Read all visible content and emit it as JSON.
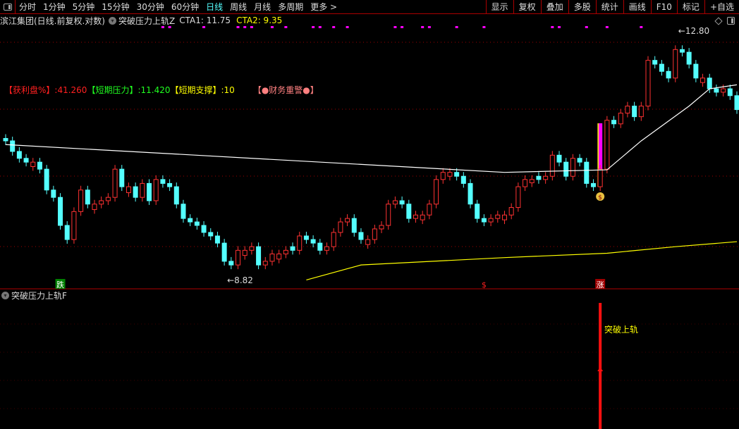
{
  "toolbar": {
    "periods": [
      "分时",
      "1分钟",
      "5分钟",
      "15分钟",
      "30分钟",
      "60分钟",
      "日线",
      "周线",
      "月线",
      "多周期",
      "更多 >"
    ],
    "active": "日线",
    "right_buttons": [
      "显示",
      "复权",
      "叠加",
      "多股",
      "统计",
      "画线",
      "F10",
      "标记",
      "+自选"
    ]
  },
  "info": {
    "stock": "滨江集团(日线.前复权.对数)",
    "indicator": "突破压力上轨Z",
    "cta1": "CTA1: 11.75",
    "cta2": "CTA2: 9.35"
  },
  "legend": {
    "profit_label": "【获利盘%】",
    "profit_value": ":41.260",
    "pressure_label": "【短期压力】",
    "pressure_value": ":11.420",
    "support_label": "【短期支撑】",
    "support_value": ":10",
    "warning": "【●财务重警●】"
  },
  "sub_panel": {
    "title": "突破压力上轨F",
    "signal_text": "突破上轨"
  },
  "colors": {
    "up": "#ff3232",
    "down": "#54ffff",
    "ma_white": "#ffffff",
    "ma_yellow": "#ffff00",
    "signal": "#ff00ff",
    "grid": "#a00000"
  },
  "chart_data": {
    "type": "candlestick",
    "scale": "log",
    "candles_open_close": [
      [
        10.9,
        10.86
      ],
      [
        10.86,
        10.69
      ],
      [
        10.69,
        10.58
      ],
      [
        10.58,
        10.52
      ],
      [
        10.45,
        10.52
      ],
      [
        10.52,
        10.41
      ],
      [
        10.41,
        10.09
      ],
      [
        10.09,
        9.98
      ],
      [
        9.98,
        9.57
      ],
      [
        9.57,
        9.37
      ],
      [
        9.37,
        9.77
      ],
      [
        9.77,
        10.09
      ],
      [
        10.09,
        9.88
      ],
      [
        9.8,
        9.88
      ],
      [
        9.88,
        9.93
      ],
      [
        9.93,
        9.98
      ],
      [
        9.98,
        10.41
      ],
      [
        10.41,
        10.14
      ],
      [
        10.05,
        10.14
      ],
      [
        10.14,
        9.98
      ],
      [
        9.98,
        10.19
      ],
      [
        10.19,
        9.93
      ],
      [
        9.93,
        10.25
      ],
      [
        10.25,
        10.19
      ],
      [
        10.19,
        10.14
      ],
      [
        10.14,
        9.88
      ],
      [
        9.88,
        9.67
      ],
      [
        9.67,
        9.62
      ],
      [
        9.62,
        9.57
      ],
      [
        9.57,
        9.47
      ],
      [
        9.47,
        9.42
      ],
      [
        9.42,
        9.32
      ],
      [
        9.32,
        9.07
      ],
      [
        9.07,
        9.02
      ],
      [
        9.02,
        9.22
      ],
      [
        9.15,
        9.22
      ],
      [
        9.22,
        9.27
      ],
      [
        9.27,
        9.02
      ],
      [
        9.02,
        9.07
      ],
      [
        9.07,
        9.17
      ],
      [
        9.1,
        9.17
      ],
      [
        9.17,
        9.22
      ],
      [
        9.27,
        9.22
      ],
      [
        9.22,
        9.42
      ],
      [
        9.42,
        9.37
      ],
      [
        9.37,
        9.32
      ],
      [
        9.32,
        9.22
      ],
      [
        9.22,
        9.27
      ],
      [
        9.27,
        9.47
      ],
      [
        9.47,
        9.62
      ],
      [
        9.62,
        9.67
      ],
      [
        9.67,
        9.47
      ],
      [
        9.47,
        9.37
      ],
      [
        9.3,
        9.37
      ],
      [
        9.37,
        9.52
      ],
      [
        9.52,
        9.57
      ],
      [
        9.57,
        9.88
      ],
      [
        9.88,
        9.93
      ],
      [
        9.93,
        9.88
      ],
      [
        9.88,
        9.67
      ],
      [
        9.67,
        9.72
      ],
      [
        9.65,
        9.72
      ],
      [
        9.72,
        9.88
      ],
      [
        9.88,
        10.25
      ],
      [
        10.25,
        10.36
      ],
      [
        10.3,
        10.36
      ],
      [
        10.36,
        10.3
      ],
      [
        10.3,
        10.19
      ],
      [
        10.19,
        9.88
      ],
      [
        9.88,
        9.67
      ],
      [
        9.67,
        9.62
      ],
      [
        9.62,
        9.67
      ],
      [
        9.67,
        9.72
      ],
      [
        9.65,
        9.72
      ],
      [
        9.72,
        9.83
      ],
      [
        9.83,
        10.14
      ],
      [
        10.14,
        10.25
      ],
      [
        10.2,
        10.25
      ],
      [
        10.3,
        10.25
      ],
      [
        10.25,
        10.3
      ],
      [
        10.3,
        10.63
      ],
      [
        10.63,
        10.52
      ],
      [
        10.52,
        10.3
      ],
      [
        10.3,
        10.58
      ],
      [
        10.58,
        10.52
      ],
      [
        10.52,
        10.19
      ],
      [
        10.19,
        10.14
      ],
      [
        10.14,
        10.41
      ],
      [
        10.41,
        11.2
      ],
      [
        11.2,
        11.14
      ],
      [
        11.14,
        11.32
      ],
      [
        11.32,
        11.44
      ],
      [
        11.44,
        11.26
      ],
      [
        11.26,
        11.44
      ],
      [
        11.44,
        12.25
      ],
      [
        12.25,
        12.18
      ],
      [
        12.18,
        12.05
      ],
      [
        12.05,
        11.93
      ],
      [
        11.93,
        12.45
      ],
      [
        12.45,
        12.4
      ],
      [
        12.4,
        12.18
      ],
      [
        12.18,
        11.93
      ],
      [
        11.85,
        11.93
      ],
      [
        11.93,
        11.74
      ],
      [
        11.74,
        11.68
      ],
      [
        11.68,
        11.74
      ],
      [
        11.74,
        11.62
      ],
      [
        11.62,
        11.38
      ]
    ],
    "ma_white": [
      [
        0,
        10.8
      ],
      [
        73,
        10.36
      ],
      [
        88,
        10.4
      ],
      [
        93,
        10.86
      ],
      [
        100,
        11.44
      ],
      [
        103,
        11.74
      ],
      [
        107,
        11.81
      ]
    ],
    "ma_yellow": [
      [
        44,
        8.82
      ],
      [
        52,
        9.02
      ],
      [
        73,
        9.12
      ],
      [
        88,
        9.18
      ],
      [
        98,
        9.27
      ],
      [
        107,
        9.34
      ]
    ],
    "high_label": {
      "index": 98,
      "value": "12.80"
    },
    "low_label": {
      "index": 32,
      "value": "8.82"
    },
    "signal_markers_top": [
      23,
      24,
      29,
      34,
      35,
      36,
      39,
      41,
      45,
      46,
      48,
      50,
      57,
      58,
      61,
      62,
      66,
      70,
      80,
      81,
      85,
      88,
      93
    ],
    "bottom_markers": [
      {
        "index": 8,
        "text": "跌",
        "color": "#008000"
      },
      {
        "index": 70,
        "text": "$",
        "color": "#ff2020"
      },
      {
        "index": 87,
        "text": "涨",
        "color": "#a00000"
      }
    ],
    "breakout_index": 87
  }
}
